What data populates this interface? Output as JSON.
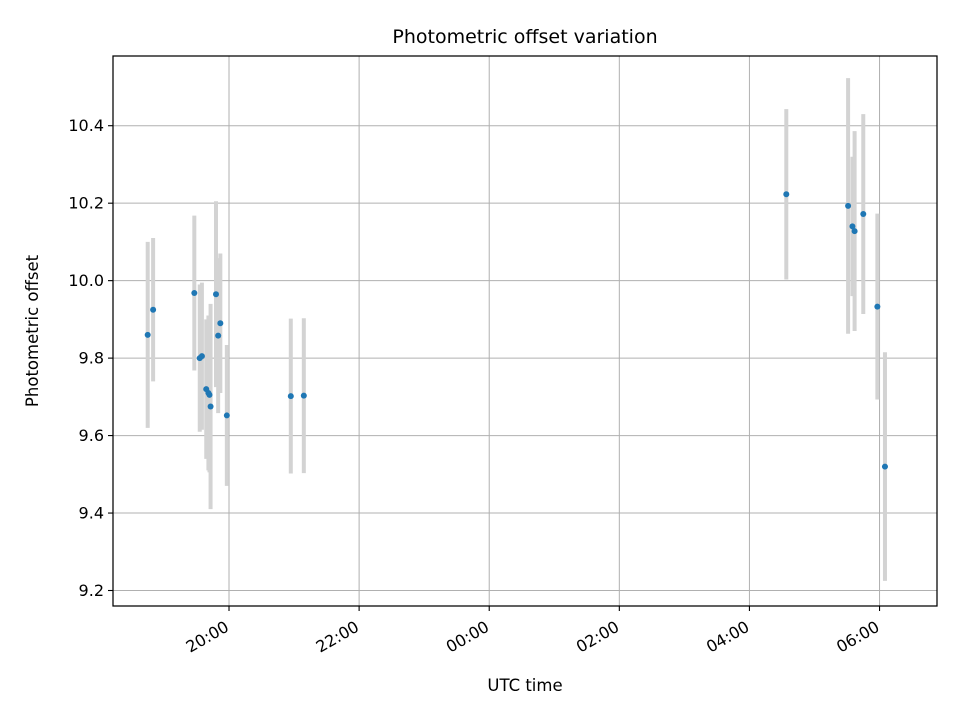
{
  "chart_data": {
    "type": "scatter",
    "title": "Photometric offset variation",
    "xlabel": "UTC time",
    "ylabel": "Photometric offset",
    "x_ticks": [
      "20:00",
      "22:00",
      "00:00",
      "02:00",
      "04:00",
      "06:00"
    ],
    "y_ticks": [
      "9.2",
      "9.4",
      "9.6",
      "9.8",
      "10.0",
      "10.2",
      "10.4"
    ],
    "xlim": [
      "18:13",
      "06:53"
    ],
    "ylim": [
      9.16,
      10.58
    ],
    "grid": true,
    "marker_color": "#1f77b4",
    "errorbar_color": "#d3d3d3",
    "points": [
      {
        "x": "18:45",
        "y": 9.86,
        "err": 0.24
      },
      {
        "x": "18:50",
        "y": 9.925,
        "err": 0.185
      },
      {
        "x": "19:28",
        "y": 9.968,
        "err": 0.2
      },
      {
        "x": "19:33",
        "y": 9.8,
        "err": 0.19
      },
      {
        "x": "19:35",
        "y": 9.805,
        "err": 0.19
      },
      {
        "x": "19:39",
        "y": 9.72,
        "err": 0.18
      },
      {
        "x": "19:41",
        "y": 9.71,
        "err": 0.2
      },
      {
        "x": "19:42",
        "y": 9.705,
        "err": 0.2
      },
      {
        "x": "19:43",
        "y": 9.675,
        "err": 0.265
      },
      {
        "x": "19:48",
        "y": 9.965,
        "err": 0.24
      },
      {
        "x": "19:50",
        "y": 9.858,
        "err": 0.2
      },
      {
        "x": "19:52",
        "y": 9.89,
        "err": 0.18
      },
      {
        "x": "19:58",
        "y": 9.652,
        "err": 0.182
      },
      {
        "x": "20:57",
        "y": 9.702,
        "err": 0.2
      },
      {
        "x": "21:09",
        "y": 9.703,
        "err": 0.2
      },
      {
        "x": "04:34",
        "y": 10.223,
        "err": 0.22
      },
      {
        "x": "05:31",
        "y": 10.193,
        "err": 0.33
      },
      {
        "x": "05:35",
        "y": 10.14,
        "err": 0.18
      },
      {
        "x": "05:37",
        "y": 10.128,
        "err": 0.258
      },
      {
        "x": "05:45",
        "y": 10.172,
        "err": 0.258
      },
      {
        "x": "05:58",
        "y": 9.933,
        "err": 0.24
      },
      {
        "x": "06:05",
        "y": 9.52,
        "err": 0.295
      }
    ]
  }
}
